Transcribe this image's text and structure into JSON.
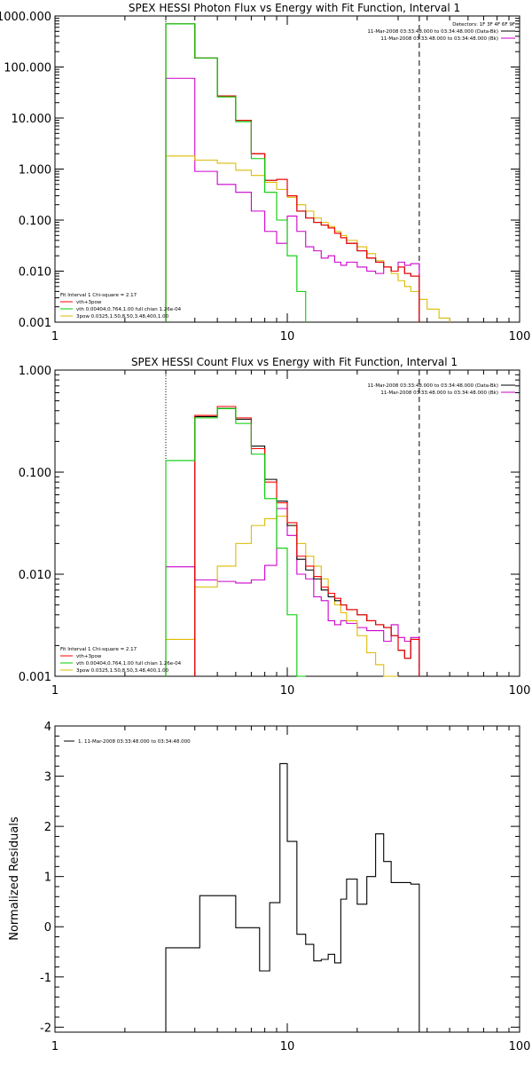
{
  "chart_data": [
    {
      "type": "line",
      "title": "SPEX HESSI Photon Flux vs Energy with Fit Function, Interval 1",
      "xscale": "log",
      "yscale": "log",
      "xlim": [
        1,
        100
      ],
      "ylim": [
        0.001,
        1000
      ],
      "xticks": [
        {
          "value": 1,
          "label": "1"
        },
        {
          "value": 10,
          "label": "10"
        },
        {
          "value": 100,
          "label": "100"
        }
      ],
      "yticks": [
        {
          "value": 0.001,
          "label": "0.001"
        },
        {
          "value": 0.01,
          "label": "0.010"
        },
        {
          "value": 0.1,
          "label": "0.100"
        },
        {
          "value": 1,
          "label": "1.000"
        },
        {
          "value": 10,
          "label": "10.000"
        },
        {
          "value": 100,
          "label": "100.000"
        },
        {
          "value": 1000,
          "label": "1000.000"
        }
      ],
      "vlines": [
        {
          "x": 3,
          "style": "dotted",
          "color": "#000000"
        },
        {
          "x": 37,
          "style": "dashed",
          "color": "#000000"
        }
      ],
      "info_lines": [
        "Detectors: 1F 3F 4F 6F 9F",
        "11-Mar-2008 03:33:48.000 to 03:34:48.000 (Data-Bk)",
        "11-Mar-2008 03:33:48.000 to 03:34:48.000 (Bk)"
      ],
      "legend": {
        "heading": "Fit Interval 1    Chi-square = 2.17",
        "entries": [
          {
            "label": "vth+3pow",
            "color": "#ff0000"
          },
          {
            "label": "vth 0.00404,0.764,1.00   full chian 1.26e-04",
            "color": "#00cc00"
          },
          {
            "label": "3pow 0.0325,1.50,8.50,3.48,400,1.00",
            "color": "#ddbb00"
          }
        ]
      },
      "series": [
        {
          "role": "data-bk",
          "color": "#000000",
          "edges": [
            3,
            4,
            5,
            6,
            7,
            8,
            9,
            10,
            11,
            12,
            13,
            14,
            15,
            16,
            17,
            18,
            20,
            22,
            24,
            26,
            28,
            30,
            32,
            34,
            37
          ],
          "values": [
            700,
            150,
            27,
            9,
            2.0,
            0.6,
            0.63,
            0.3,
            0.15,
            0.11,
            0.09,
            0.08,
            0.07,
            0.055,
            0.045,
            0.035,
            0.025,
            0.018,
            0.015,
            0.012,
            0.01,
            0.012,
            0.009,
            0.008
          ]
        },
        {
          "role": "vth+3pow",
          "color": "#ff0000",
          "edges": [
            3,
            4,
            5,
            6,
            7,
            8,
            9,
            10,
            11,
            12,
            13,
            14,
            15,
            16,
            17,
            18,
            20,
            22,
            24,
            26,
            28,
            30,
            32,
            34,
            37
          ],
          "values": [
            700,
            150,
            27,
            9,
            2.0,
            0.6,
            0.63,
            0.3,
            0.15,
            0.11,
            0.09,
            0.08,
            0.07,
            0.055,
            0.045,
            0.035,
            0.025,
            0.018,
            0.015,
            0.012,
            0.01,
            0.012,
            0.009,
            0.008
          ]
        },
        {
          "role": "vth",
          "color": "#00cc00",
          "edges": [
            3,
            4,
            5,
            6,
            7,
            8,
            9,
            10,
            11,
            12
          ],
          "values": [
            700,
            150,
            26,
            8.5,
            1.6,
            0.35,
            0.1,
            0.02,
            0.004,
            0.0011
          ]
        },
        {
          "role": "3pow",
          "color": "#ddbb00",
          "edges": [
            3,
            4,
            5,
            6,
            7,
            8,
            9,
            10,
            11,
            12,
            13,
            14,
            15,
            16,
            17,
            18,
            20,
            22,
            24,
            26,
            28,
            30,
            32,
            34,
            37,
            40,
            45,
            50
          ],
          "values": [
            1.8,
            1.5,
            1.3,
            0.95,
            0.75,
            0.55,
            0.4,
            0.28,
            0.2,
            0.15,
            0.11,
            0.09,
            0.075,
            0.06,
            0.05,
            0.04,
            0.03,
            0.022,
            0.016,
            0.012,
            0.009,
            0.0065,
            0.005,
            0.004,
            0.0028,
            0.0018,
            0.0012
          ]
        },
        {
          "role": "bk",
          "color": "#cc00cc",
          "edges": [
            3,
            4,
            5,
            6,
            7,
            8,
            9,
            10,
            11,
            12,
            13,
            14,
            15,
            16,
            17,
            18,
            20,
            22,
            24,
            26,
            28,
            30,
            32,
            34,
            37
          ],
          "values": [
            60,
            0.9,
            0.5,
            0.35,
            0.15,
            0.06,
            0.035,
            0.12,
            0.06,
            0.03,
            0.025,
            0.018,
            0.02,
            0.015,
            0.013,
            0.015,
            0.012,
            0.01,
            0.009,
            0.012,
            0.01,
            0.015,
            0.013,
            0.014
          ]
        }
      ]
    },
    {
      "type": "line",
      "title": "SPEX HESSI Count Flux vs Energy with Fit Function, Interval 1",
      "xscale": "log",
      "yscale": "log",
      "xlim": [
        1,
        100
      ],
      "ylim": [
        0.001,
        1
      ],
      "xticks": [
        {
          "value": 1,
          "label": "1"
        },
        {
          "value": 10,
          "label": "10"
        },
        {
          "value": 100,
          "label": "100"
        }
      ],
      "yticks": [
        {
          "value": 0.001,
          "label": "0.001"
        },
        {
          "value": 0.01,
          "label": "0.010"
        },
        {
          "value": 0.1,
          "label": "0.100"
        },
        {
          "value": 1,
          "label": "1.000"
        }
      ],
      "vlines": [
        {
          "x": 3,
          "style": "dotted",
          "color": "#000000"
        },
        {
          "x": 37,
          "style": "dashed",
          "color": "#000000"
        }
      ],
      "info_lines": [
        "11-Mar-2008 03:33:48.000 to 03:34:48.000 (Data-Bk)",
        "11-Mar-2008 03:33:48.000 to 03:34:48.000 (Bk)"
      ],
      "legend": {
        "heading": "Fit Interval 1    Chi-square = 2.17",
        "entries": [
          {
            "label": "vth+3pow",
            "color": "#ff0000"
          },
          {
            "label": "vth 0.00404,0.764,1.00   full chian 1.26e-04",
            "color": "#00cc00"
          },
          {
            "label": "3pow 0.0325,1.50,8.50,3.48,400,1.00",
            "color": "#ddbb00"
          }
        ]
      },
      "series": [
        {
          "role": "data-bk",
          "color": "#000000",
          "edges": [
            4,
            5,
            6,
            7,
            8,
            9,
            10,
            11,
            12,
            13,
            14,
            15,
            16,
            17,
            18,
            20,
            22,
            24,
            26,
            28,
            30,
            32,
            34,
            37
          ],
          "values": [
            0.35,
            0.42,
            0.33,
            0.18,
            0.085,
            0.052,
            0.03,
            0.014,
            0.011,
            0.009,
            0.007,
            0.006,
            0.0055,
            0.005,
            0.0045,
            0.004,
            0.0035,
            0.0032,
            0.003,
            0.0025,
            0.0018,
            0.0015,
            0.0023
          ]
        },
        {
          "role": "vth+3pow",
          "color": "#ff0000",
          "edges": [
            4,
            5,
            6,
            7,
            8,
            9,
            10,
            11,
            12,
            13,
            14,
            15,
            16,
            17,
            18,
            20,
            22,
            24,
            26,
            28,
            30,
            32,
            34,
            37
          ],
          "values": [
            0.36,
            0.44,
            0.34,
            0.17,
            0.08,
            0.05,
            0.032,
            0.015,
            0.012,
            0.0095,
            0.0075,
            0.0065,
            0.0058,
            0.005,
            0.0045,
            0.004,
            0.0035,
            0.0032,
            0.003,
            0.0025,
            0.0018,
            0.0015,
            0.0023
          ]
        },
        {
          "role": "vth",
          "color": "#00cc00",
          "edges": [
            3,
            4,
            5,
            6,
            7,
            8,
            9,
            10,
            11,
            12
          ],
          "values": [
            0.13,
            0.34,
            0.42,
            0.3,
            0.15,
            0.055,
            0.018,
            0.004,
            0.001
          ]
        },
        {
          "role": "3pow",
          "color": "#ddbb00",
          "edges": [
            3,
            4,
            5,
            6,
            7,
            8,
            9,
            10,
            11,
            12,
            13,
            14,
            15,
            16,
            17,
            18,
            20,
            22,
            24,
            26,
            28,
            30
          ],
          "values": [
            0.0023,
            0.0075,
            0.012,
            0.02,
            0.03,
            0.035,
            0.037,
            0.03,
            0.02,
            0.015,
            0.012,
            0.009,
            0.0065,
            0.005,
            0.0042,
            0.0035,
            0.0025,
            0.0017,
            0.0013,
            0.001,
            0.0008
          ]
        },
        {
          "role": "bk",
          "color": "#cc00cc",
          "edges": [
            3,
            4,
            5,
            6,
            7,
            8,
            9,
            10,
            11,
            12,
            13,
            14,
            15,
            16,
            17,
            18,
            20,
            22,
            24,
            26,
            28,
            30,
            32,
            34,
            37
          ],
          "values": [
            0.0118,
            0.0088,
            0.0085,
            0.0082,
            0.0088,
            0.0122,
            0.044,
            0.024,
            0.01,
            0.009,
            0.006,
            0.0055,
            0.0035,
            0.0032,
            0.0035,
            0.0033,
            0.003,
            0.0028,
            0.0028,
            0.0022,
            0.0032,
            0.0024,
            0.0022,
            0.0024
          ]
        }
      ]
    },
    {
      "type": "line",
      "title": "",
      "xscale": "log",
      "yscale": "linear",
      "ylabel": "Normalized Residuals",
      "xlim": [
        1,
        100
      ],
      "ylim": [
        -2.1,
        4
      ],
      "xticks": [
        {
          "value": 1,
          "label": "1"
        },
        {
          "value": 10,
          "label": "10"
        },
        {
          "value": 100,
          "label": "100"
        }
      ],
      "yticks": [
        {
          "value": -2,
          "label": "-2"
        },
        {
          "value": -1,
          "label": "-1"
        },
        {
          "value": 0,
          "label": "0"
        },
        {
          "value": 1,
          "label": "1"
        },
        {
          "value": 2,
          "label": "2"
        },
        {
          "value": 3,
          "label": "3"
        },
        {
          "value": 4,
          "label": "4"
        }
      ],
      "legend": {
        "entries": [
          {
            "label": "1. 11-Mar-2008 03:33:48.000 to 03:34:48.000",
            "color": "#000000"
          }
        ]
      },
      "series": [
        {
          "role": "residuals",
          "color": "#000000",
          "edges": [
            3,
            3.5,
            4.2,
            5,
            6,
            7,
            7.6,
            8.4,
            9.3,
            10,
            11,
            12,
            13,
            14,
            15,
            16,
            17,
            18,
            20,
            22,
            24,
            26,
            28,
            30,
            32,
            34,
            37
          ],
          "values": [
            -0.42,
            -0.42,
            0.62,
            0.62,
            -0.02,
            -0.02,
            -0.88,
            0.48,
            3.25,
            1.7,
            -0.15,
            -0.35,
            -0.68,
            -0.65,
            -0.55,
            -0.72,
            0.55,
            0.95,
            0.45,
            1.0,
            1.85,
            1.3,
            0.88,
            0.88,
            0.88,
            0.85
          ]
        }
      ]
    }
  ]
}
